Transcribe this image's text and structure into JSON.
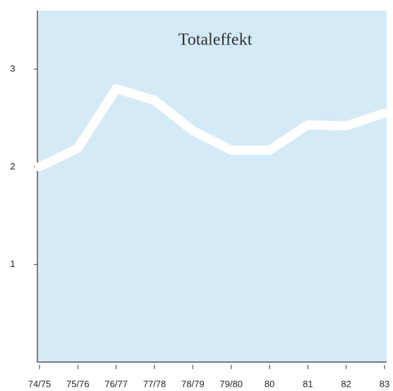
{
  "chart_data": {
    "type": "line",
    "title": "Totaleffekt",
    "categories": [
      "74/75",
      "75/76",
      "76/77",
      "77/78",
      "78/79",
      "79/80",
      "80",
      "81",
      "82",
      "83"
    ],
    "series": [
      {
        "name": "Totaleffekt",
        "color": "#ffffff",
        "values": [
          2.0,
          2.19,
          2.8,
          2.68,
          2.37,
          2.17,
          2.17,
          2.43,
          2.42,
          2.55
        ]
      }
    ],
    "ylim": [
      0,
      3.6
    ],
    "yticks": [
      1,
      2,
      3
    ],
    "background": "#d4eaf7"
  }
}
